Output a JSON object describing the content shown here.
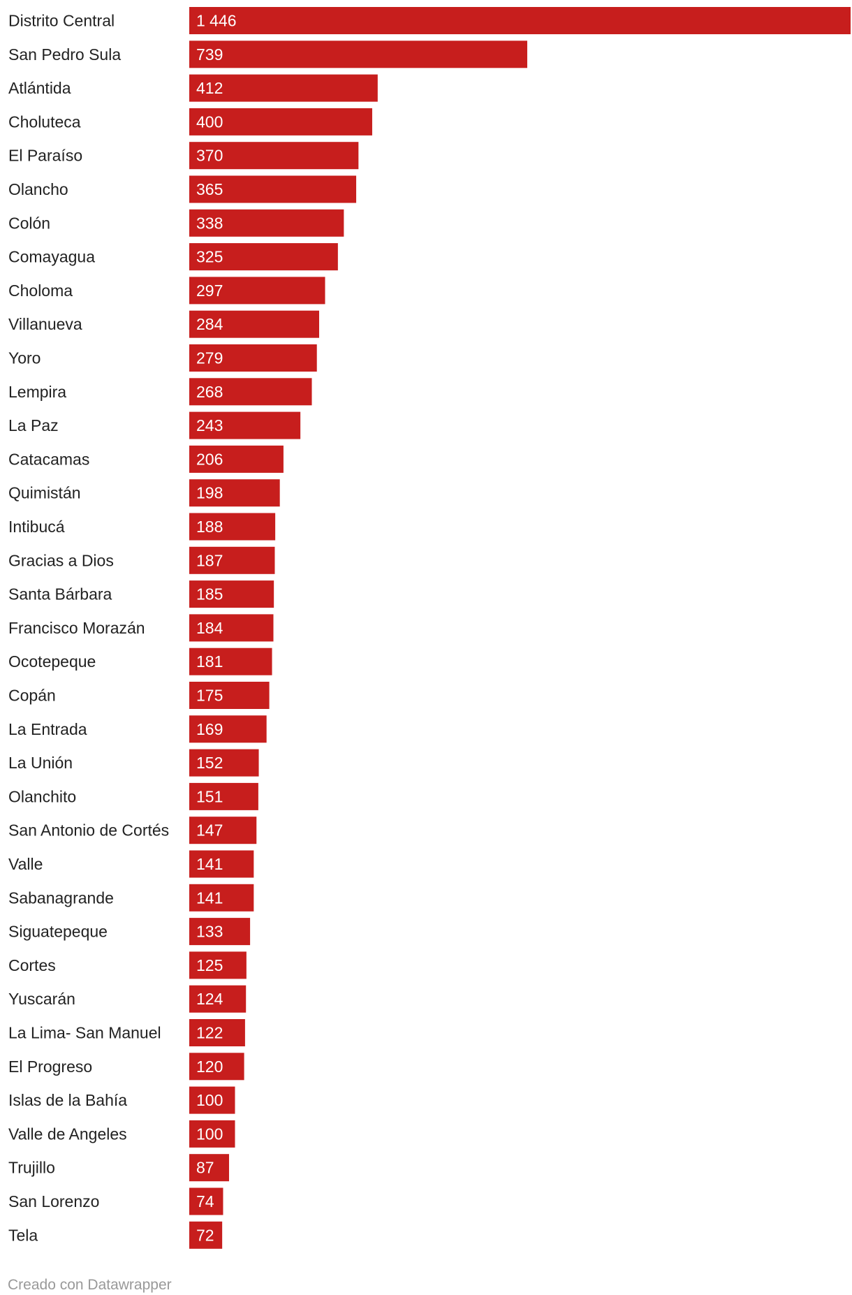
{
  "chart_data": {
    "type": "bar",
    "orientation": "horizontal",
    "bar_color": "#c71e1d",
    "categories": [
      "Distrito Central",
      "San Pedro Sula",
      "Atlántida",
      "Choluteca",
      "El Paraíso",
      "Olancho",
      "Colón",
      "Comayagua",
      "Choloma",
      "Villanueva",
      "Yoro",
      "Lempira",
      "La Paz",
      "Catacamas",
      "Quimistán",
      "Intibucá",
      "Gracias a Dios",
      "Santa Bárbara",
      "Francisco Morazán",
      "Ocotepeque",
      "Copán",
      "La Entrada",
      "La Unión",
      "Olanchito",
      "San Antonio de Cortés",
      "Valle",
      "Sabanagrande",
      "Siguatepeque",
      "Cortes",
      "Yuscarán",
      "La Lima- San Manuel",
      "El Progreso",
      "Islas de la Bahía",
      "Valle de Angeles",
      "Trujillo",
      "San Lorenzo",
      "Tela"
    ],
    "values": [
      1446,
      739,
      412,
      400,
      370,
      365,
      338,
      325,
      297,
      284,
      279,
      268,
      243,
      206,
      198,
      188,
      187,
      185,
      184,
      181,
      175,
      169,
      152,
      151,
      147,
      141,
      141,
      133,
      125,
      124,
      122,
      120,
      100,
      100,
      87,
      74,
      72
    ],
    "value_labels": [
      "1 446",
      "739",
      "412",
      "400",
      "370",
      "365",
      "338",
      "325",
      "297",
      "284",
      "279",
      "268",
      "243",
      "206",
      "198",
      "188",
      "187",
      "185",
      "184",
      "181",
      "175",
      "169",
      "152",
      "151",
      "147",
      "141",
      "141",
      "133",
      "125",
      "124",
      "122",
      "120",
      "100",
      "100",
      "87",
      "74",
      "72"
    ],
    "xlim": [
      0,
      1446
    ]
  },
  "footer": {
    "credit": "Creado con Datawrapper"
  }
}
